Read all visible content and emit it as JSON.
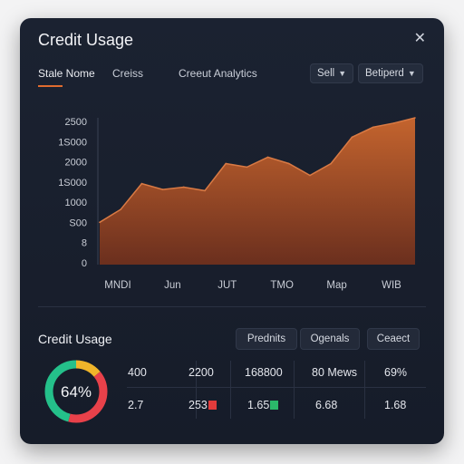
{
  "window": {
    "title": "Credit Usage",
    "close_symbol": "✕"
  },
  "tabs": [
    {
      "label": "Stale Nome",
      "active": true
    },
    {
      "label": "Creiss",
      "active": false
    },
    {
      "label": "Creeut Analytics",
      "active": false
    }
  ],
  "dropdowns": {
    "first": {
      "label": "Sell"
    },
    "second": {
      "label": "Betiperd"
    }
  },
  "chart_data": {
    "type": "area",
    "title": "",
    "xlabel": "",
    "ylabel": "",
    "y_tick_labels": [
      "2500",
      "1S000",
      "2000",
      "1S000",
      "1000",
      "S00",
      "8",
      "0"
    ],
    "x_tick_labels": [
      "MNDI",
      "Jun",
      "JUT",
      "TMO",
      "Map",
      "WIB"
    ],
    "ylim": [
      0,
      2500
    ],
    "grid": false,
    "x": [
      0,
      1,
      2,
      3,
      4,
      5,
      6,
      7,
      8,
      9,
      10,
      11,
      12,
      13,
      14,
      15
    ],
    "values": [
      720,
      940,
      1380,
      1280,
      1320,
      1260,
      1720,
      1660,
      1830,
      1720,
      1520,
      1720,
      2170,
      2340,
      2410,
      2500
    ],
    "colors": {
      "fill_top": "#c4642e",
      "fill_bottom": "#6b2f1e",
      "line": "#d97a44"
    }
  },
  "summary": {
    "title": "Credit Usage",
    "buttons": [
      {
        "label": "Prednits"
      },
      {
        "label": "Ogenals"
      },
      {
        "label": "Ceaect"
      }
    ],
    "donut": {
      "value_label": "64%",
      "segments": [
        {
          "color": "#f0b52a",
          "fraction": 0.14
        },
        {
          "color": "#e8414a",
          "fraction": 0.4
        },
        {
          "color": "#24c08a",
          "fraction": 0.46
        }
      ]
    },
    "row1": [
      "400",
      "2200",
      "168800",
      "80 Mews",
      "69%"
    ],
    "row2": [
      "2.7",
      "253",
      "1.65",
      "6.68",
      "1.68"
    ],
    "row2_flags": [
      null,
      "#e23b3b",
      "#2bb86a",
      null,
      null
    ]
  }
}
